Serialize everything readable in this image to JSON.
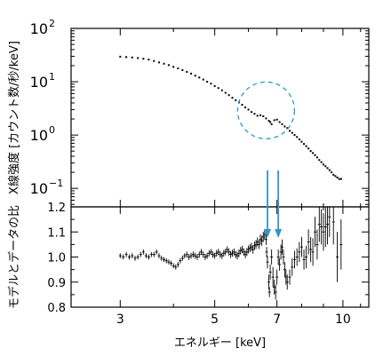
{
  "chart_data": [
    {
      "panel": "top",
      "type": "scatter",
      "ylabel": "X線強度 [カウント数/秒/keV]",
      "xscale": "log",
      "yscale": "log",
      "xlim": [
        2.3,
        11.5
      ],
      "ylim": [
        0.045,
        100
      ],
      "y_tick_labels": {
        "major_values": [
          0.1,
          1,
          10,
          100
        ],
        "major_labels": [
          "10",
          "10",
          "10",
          "10"
        ],
        "exponents": [
          "−1",
          "0",
          "1",
          "2"
        ]
      },
      "points": [
        [
          3.0,
          29.5
        ],
        [
          3.1,
          29.0
        ],
        [
          3.2,
          28.5
        ],
        [
          3.3,
          27.8
        ],
        [
          3.4,
          27.0
        ],
        [
          3.5,
          26.0
        ],
        [
          3.6,
          24.5
        ],
        [
          3.7,
          23.0
        ],
        [
          3.8,
          21.8
        ],
        [
          3.9,
          20.5
        ],
        [
          4.0,
          19.0
        ],
        [
          4.1,
          17.8
        ],
        [
          4.2,
          16.5
        ],
        [
          4.3,
          15.3
        ],
        [
          4.4,
          14.2
        ],
        [
          4.5,
          13.0
        ],
        [
          4.6,
          12.0
        ],
        [
          4.7,
          11.0
        ],
        [
          4.8,
          10.0
        ],
        [
          4.9,
          9.2
        ],
        [
          5.0,
          8.3
        ],
        [
          5.1,
          7.6
        ],
        [
          5.2,
          6.9
        ],
        [
          5.3,
          6.2
        ],
        [
          5.4,
          5.6
        ],
        [
          5.5,
          5.0
        ],
        [
          5.6,
          4.5
        ],
        [
          5.7,
          4.1
        ],
        [
          5.8,
          3.7
        ],
        [
          5.9,
          3.3
        ],
        [
          6.0,
          3.0
        ],
        [
          6.1,
          2.7
        ],
        [
          6.2,
          2.5
        ],
        [
          6.3,
          2.3
        ],
        [
          6.4,
          2.35
        ],
        [
          6.5,
          2.25
        ],
        [
          6.6,
          2.05
        ],
        [
          6.7,
          1.85
        ],
        [
          6.75,
          1.75
        ],
        [
          6.8,
          1.6
        ],
        [
          6.9,
          1.9
        ],
        [
          7.0,
          1.95
        ],
        [
          7.1,
          1.75
        ],
        [
          7.2,
          1.6
        ],
        [
          7.3,
          1.45
        ],
        [
          7.4,
          1.35
        ],
        [
          7.5,
          1.2
        ],
        [
          7.6,
          1.1
        ],
        [
          7.7,
          1.0
        ],
        [
          7.8,
          0.92
        ],
        [
          7.9,
          0.83
        ],
        [
          8.0,
          0.75
        ],
        [
          8.1,
          0.68
        ],
        [
          8.2,
          0.62
        ],
        [
          8.3,
          0.56
        ],
        [
          8.4,
          0.5
        ],
        [
          8.5,
          0.46
        ],
        [
          8.6,
          0.42
        ],
        [
          8.7,
          0.38
        ],
        [
          8.8,
          0.34
        ],
        [
          8.9,
          0.31
        ],
        [
          9.0,
          0.28
        ],
        [
          9.1,
          0.26
        ],
        [
          9.2,
          0.24
        ],
        [
          9.3,
          0.22
        ],
        [
          9.4,
          0.2
        ],
        [
          9.5,
          0.18
        ],
        [
          9.6,
          0.17
        ],
        [
          9.7,
          0.16
        ],
        [
          9.8,
          0.15
        ],
        [
          9.9,
          0.15
        ]
      ],
      "annotation": {
        "type": "dashed-circle",
        "center_x": 6.6,
        "center_y": 2.9,
        "color": "#2e96c8"
      }
    },
    {
      "panel": "bottom",
      "type": "scatter",
      "xlabel": "エネルギー [keV]",
      "ylabel": "モデルとデータの比",
      "xscale": "log",
      "xlim": [
        2.3,
        11.5
      ],
      "ylim": [
        0.8,
        1.2
      ],
      "x_ticks": [
        3,
        5,
        7,
        10
      ],
      "x_tick_labels": [
        "3",
        "5",
        "7",
        "10"
      ],
      "y_ticks": [
        0.8,
        0.9,
        1.0,
        1.1,
        1.2
      ],
      "y_tick_labels": [
        "0.8",
        "0.9",
        "1.0",
        "1.1",
        "1.2"
      ],
      "points": [
        [
          3.0,
          1.005,
          0.01
        ],
        [
          3.05,
          1.0,
          0.01
        ],
        [
          3.1,
          1.01,
          0.01
        ],
        [
          3.15,
          1.0,
          0.01
        ],
        [
          3.2,
          1.005,
          0.01
        ],
        [
          3.25,
          0.995,
          0.01
        ],
        [
          3.3,
          1.0,
          0.01
        ],
        [
          3.35,
          1.01,
          0.01
        ],
        [
          3.4,
          1.02,
          0.01
        ],
        [
          3.45,
          1.005,
          0.01
        ],
        [
          3.5,
          1.0,
          0.01
        ],
        [
          3.55,
          1.01,
          0.01
        ],
        [
          3.6,
          1.01,
          0.01
        ],
        [
          3.65,
          1.02,
          0.01
        ],
        [
          3.7,
          1.005,
          0.01
        ],
        [
          3.75,
          0.995,
          0.01
        ],
        [
          3.8,
          0.99,
          0.01
        ],
        [
          3.85,
          0.985,
          0.01
        ],
        [
          3.9,
          0.98,
          0.01
        ],
        [
          3.95,
          0.975,
          0.01
        ],
        [
          4.0,
          0.965,
          0.01
        ],
        [
          4.05,
          0.96,
          0.01
        ],
        [
          4.1,
          0.97,
          0.01
        ],
        [
          4.15,
          0.985,
          0.01
        ],
        [
          4.2,
          0.995,
          0.01
        ],
        [
          4.25,
          1.005,
          0.01
        ],
        [
          4.3,
          1.01,
          0.012
        ],
        [
          4.35,
          1.0,
          0.012
        ],
        [
          4.4,
          1.005,
          0.012
        ],
        [
          4.45,
          1.01,
          0.012
        ],
        [
          4.5,
          1.005,
          0.012
        ],
        [
          4.55,
          1.0,
          0.012
        ],
        [
          4.6,
          1.01,
          0.012
        ],
        [
          4.65,
          1.02,
          0.012
        ],
        [
          4.7,
          1.01,
          0.012
        ],
        [
          4.75,
          1.0,
          0.012
        ],
        [
          4.8,
          1.005,
          0.012
        ],
        [
          4.85,
          1.015,
          0.012
        ],
        [
          4.9,
          1.02,
          0.012
        ],
        [
          4.95,
          1.01,
          0.012
        ],
        [
          5.0,
          1.005,
          0.012
        ],
        [
          5.05,
          1.015,
          0.013
        ],
        [
          5.1,
          1.02,
          0.013
        ],
        [
          5.15,
          1.01,
          0.013
        ],
        [
          5.2,
          1.005,
          0.013
        ],
        [
          5.25,
          1.015,
          0.013
        ],
        [
          5.3,
          1.02,
          0.013
        ],
        [
          5.35,
          1.03,
          0.013
        ],
        [
          5.4,
          1.02,
          0.014
        ],
        [
          5.45,
          1.01,
          0.014
        ],
        [
          5.5,
          1.015,
          0.014
        ],
        [
          5.55,
          1.02,
          0.014
        ],
        [
          5.6,
          1.01,
          0.014
        ],
        [
          5.65,
          1.005,
          0.014
        ],
        [
          5.7,
          1.015,
          0.015
        ],
        [
          5.75,
          1.025,
          0.015
        ],
        [
          5.8,
          1.03,
          0.015
        ],
        [
          5.85,
          1.02,
          0.015
        ],
        [
          5.9,
          1.01,
          0.015
        ],
        [
          5.95,
          1.02,
          0.016
        ],
        [
          6.0,
          1.03,
          0.016
        ],
        [
          6.05,
          1.035,
          0.016
        ],
        [
          6.1,
          1.04,
          0.016
        ],
        [
          6.15,
          1.03,
          0.017
        ],
        [
          6.2,
          1.045,
          0.017
        ],
        [
          6.25,
          1.05,
          0.018
        ],
        [
          6.3,
          1.06,
          0.018
        ],
        [
          6.35,
          1.05,
          0.018
        ],
        [
          6.4,
          1.07,
          0.02
        ],
        [
          6.45,
          1.065,
          0.02
        ],
        [
          6.5,
          1.08,
          0.02
        ],
        [
          6.55,
          1.09,
          0.022
        ],
        [
          6.6,
          1.07,
          0.022
        ],
        [
          6.62,
          1.02,
          0.02
        ],
        [
          6.65,
          0.98,
          0.025
        ],
        [
          6.7,
          0.9,
          0.03
        ],
        [
          6.72,
          0.86,
          0.02
        ],
        [
          6.75,
          0.94,
          0.03
        ],
        [
          6.8,
          1.0,
          0.03
        ],
        [
          6.85,
          0.92,
          0.04
        ],
        [
          6.9,
          0.88,
          0.03
        ],
        [
          6.95,
          0.86,
          0.03
        ],
        [
          7.0,
          0.92,
          0.03
        ],
        [
          7.05,
          1.0,
          0.03
        ],
        [
          7.1,
          0.97,
          0.025
        ],
        [
          7.15,
          1.02,
          0.03
        ],
        [
          7.2,
          1.04,
          0.03
        ],
        [
          7.25,
          1.0,
          0.03
        ],
        [
          7.3,
          0.95,
          0.03
        ],
        [
          7.35,
          0.92,
          0.03
        ],
        [
          7.4,
          0.9,
          0.03
        ],
        [
          7.5,
          0.92,
          0.03
        ],
        [
          7.6,
          0.96,
          0.035
        ],
        [
          7.7,
          0.99,
          0.035
        ],
        [
          7.8,
          1.0,
          0.035
        ],
        [
          7.9,
          1.02,
          0.04
        ],
        [
          8.0,
          1.04,
          0.04
        ],
        [
          8.1,
          0.99,
          0.04
        ],
        [
          8.2,
          1.0,
          0.045
        ],
        [
          8.3,
          1.06,
          0.05
        ],
        [
          8.4,
          1.03,
          0.05
        ],
        [
          8.5,
          1.02,
          0.055
        ],
        [
          8.6,
          1.1,
          0.06
        ],
        [
          8.7,
          1.05,
          0.06
        ],
        [
          8.8,
          1.13,
          0.07
        ],
        [
          8.9,
          1.12,
          0.07
        ],
        [
          9.0,
          1.1,
          0.075
        ],
        [
          9.1,
          1.12,
          0.08
        ],
        [
          9.2,
          1.13,
          0.08
        ],
        [
          9.3,
          1.16,
          0.08
        ],
        [
          9.5,
          1.14,
          0.09
        ],
        [
          9.7,
          1.0,
          0.1
        ],
        [
          9.9,
          1.05,
          0.1
        ]
      ],
      "annotation": {
        "type": "arrows",
        "x": [
          6.65,
          7.05
        ],
        "color": "#2e96c8"
      }
    }
  ]
}
